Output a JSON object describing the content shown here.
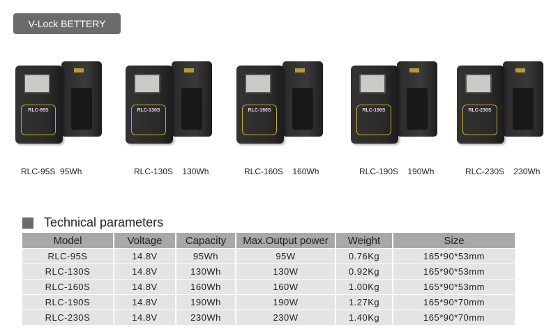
{
  "banner": {
    "title": "V-Lock  BETTERY"
  },
  "products": [
    {
      "model": "RLC-95S",
      "capacity": "95Wh",
      "label": "RLC-95S"
    },
    {
      "model": "RLC-130S",
      "capacity": "130Wh",
      "label": "RLC-130S"
    },
    {
      "model": "RLC-160S",
      "capacity": "160Wh",
      "label": "RLC-160S"
    },
    {
      "model": "RLC-190S",
      "capacity": "190Wh",
      "label": "RLC-190S"
    },
    {
      "model": "RLC-230S",
      "capacity": "230Wh",
      "label": "RLC-230S"
    }
  ],
  "section": {
    "title": "Technical parameters"
  },
  "table": {
    "headers": [
      "Model",
      "Voltage",
      "Capacity",
      "Max.Output power",
      "Weight",
      "Size"
    ],
    "rows": [
      [
        "RLC-95S",
        "14.8V",
        "95Wh",
        "95W",
        "0.76Kg",
        "165*90*53mm"
      ],
      [
        "RLC-130S",
        "14.8V",
        "130Wh",
        "130W",
        "0.92Kg",
        "165*90*53mm"
      ],
      [
        "RLC-160S",
        "14.8V",
        "160Wh",
        "160W",
        "1.00Kg",
        "165*90*53mm"
      ],
      [
        "RLC-190S",
        "14.8V",
        "190Wh",
        "190W",
        "1.27Kg",
        "165*90*70mm"
      ],
      [
        "RLC-230S",
        "14.8V",
        "230Wh",
        "230W",
        "1.40Kg",
        "165*90*70mm"
      ]
    ]
  },
  "colors": {
    "banner": "#6b6b6b",
    "header": "#a8a8a8",
    "row": "#e4e4e4",
    "label_accent": "#c9a92a"
  }
}
